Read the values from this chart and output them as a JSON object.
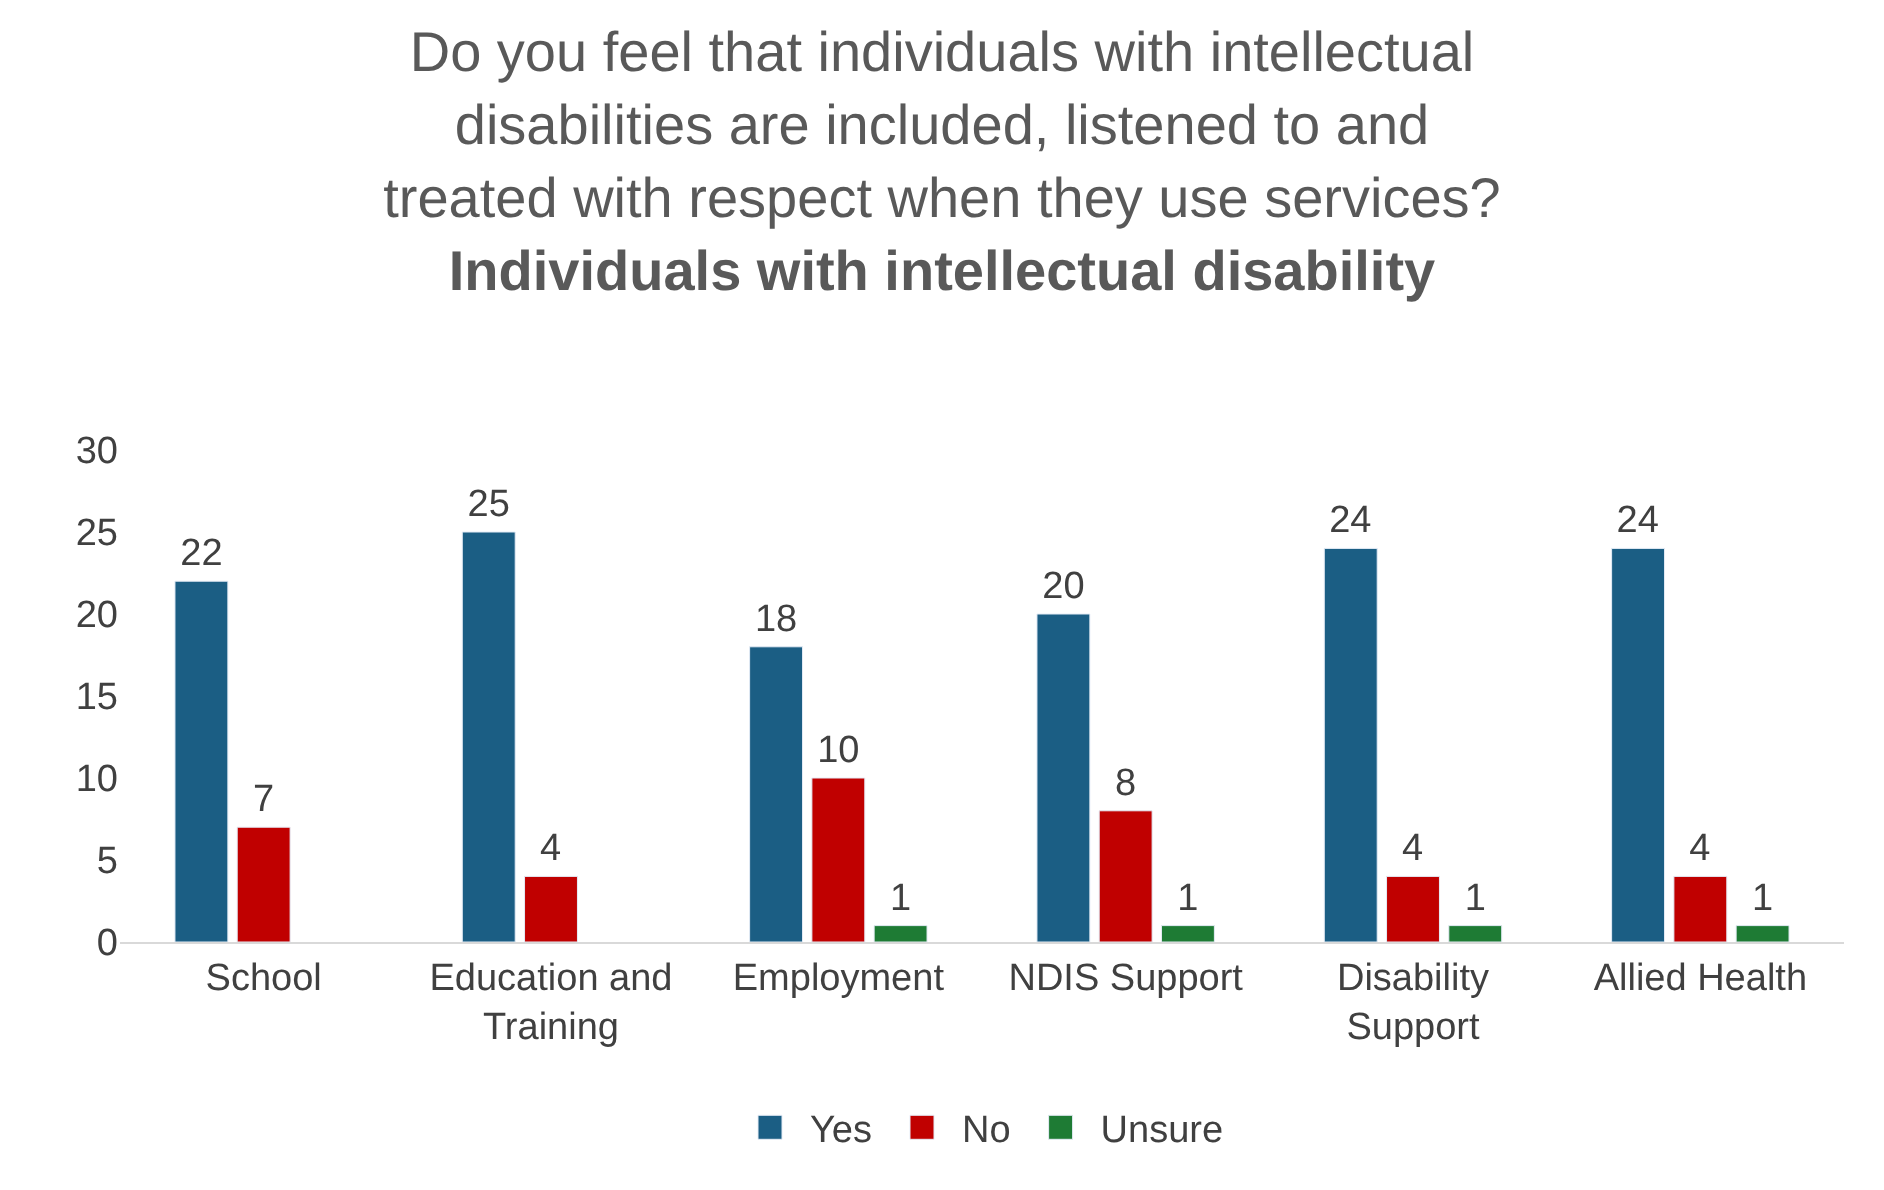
{
  "chart_data": {
    "type": "bar",
    "title": "Do you feel that individuals with intellectual disabilities are included, listened to and treated with respect when they use services?",
    "subtitle": "Individuals with intellectual disability",
    "categories": [
      "School",
      "Education and Training",
      "Employment",
      "NDIS Support",
      "Disability Support",
      "Allied Health"
    ],
    "series": [
      {
        "name": "Yes",
        "color": "#1b5e84",
        "values": [
          22,
          25,
          18,
          20,
          24,
          24
        ]
      },
      {
        "name": "No",
        "color": "#c00000",
        "values": [
          7,
          4,
          10,
          8,
          4,
          4
        ]
      },
      {
        "name": "Unsure",
        "color": "#1e7b34",
        "values": [
          null,
          null,
          1,
          1,
          1,
          1
        ]
      }
    ],
    "ylim": [
      0,
      30
    ],
    "yticks": [
      0,
      5,
      10,
      15,
      20,
      25,
      30
    ],
    "grid": false,
    "legend": "bottom",
    "data_labels": true
  }
}
